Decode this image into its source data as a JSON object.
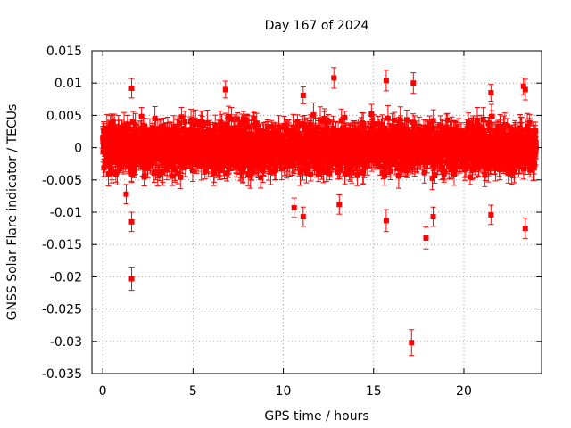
{
  "chart_data": {
    "type": "scatter",
    "title": "Day 167 of 2024",
    "xlabel": "GPS time / hours",
    "ylabel": "GNSS Solar Flare indicator / TECUs",
    "xlim": [
      -0.6,
      24.3
    ],
    "ylim": [
      -0.035,
      0.015
    ],
    "xticks": [
      0,
      5,
      10,
      15,
      20
    ],
    "xtick_labels": [
      "0",
      "5",
      "10",
      "15",
      "20"
    ],
    "yticks": [
      0.015,
      0.01,
      0.005,
      0,
      -0.005,
      -0.01,
      -0.015,
      -0.02,
      -0.025,
      -0.03,
      -0.035
    ],
    "ytick_labels": [
      "0.015",
      "0.01",
      "0.005",
      "0",
      "-0.005",
      "-0.01",
      "-0.015",
      "-0.02",
      "-0.025",
      "-0.03",
      "-0.035"
    ],
    "grid": true,
    "color": "#ff0000",
    "dense_band": {
      "x_range": [
        0,
        24
      ],
      "y_range": [
        -0.0055,
        0.0055
      ],
      "typical_error": 0.0015
    },
    "outliers": [
      {
        "x": 1.6,
        "y": -0.0203,
        "err": 0.0018
      },
      {
        "x": 1.6,
        "y": -0.0115,
        "err": 0.0015
      },
      {
        "x": 1.6,
        "y": 0.0092,
        "err": 0.0015
      },
      {
        "x": 1.3,
        "y": -0.0072,
        "err": 0.0015
      },
      {
        "x": 6.8,
        "y": 0.009,
        "err": 0.0013
      },
      {
        "x": 10.6,
        "y": -0.0093,
        "err": 0.0015
      },
      {
        "x": 11.1,
        "y": -0.0107,
        "err": 0.0015
      },
      {
        "x": 11.1,
        "y": 0.0081,
        "err": 0.0013
      },
      {
        "x": 12.8,
        "y": 0.0108,
        "err": 0.0016
      },
      {
        "x": 13.1,
        "y": -0.0088,
        "err": 0.0015
      },
      {
        "x": 15.7,
        "y": -0.0113,
        "err": 0.0017
      },
      {
        "x": 15.7,
        "y": 0.0104,
        "err": 0.0016
      },
      {
        "x": 17.1,
        "y": -0.0302,
        "err": 0.002
      },
      {
        "x": 17.2,
        "y": 0.01,
        "err": 0.0016
      },
      {
        "x": 17.9,
        "y": -0.014,
        "err": 0.0017
      },
      {
        "x": 18.3,
        "y": -0.0107,
        "err": 0.0015
      },
      {
        "x": 21.5,
        "y": -0.0104,
        "err": 0.0015
      },
      {
        "x": 21.5,
        "y": 0.0085,
        "err": 0.0013
      },
      {
        "x": 23.4,
        "y": -0.0125,
        "err": 0.0016
      },
      {
        "x": 23.4,
        "y": 0.009,
        "err": 0.0016
      },
      {
        "x": 23.3,
        "y": 0.0095,
        "err": 0.0013
      }
    ]
  }
}
